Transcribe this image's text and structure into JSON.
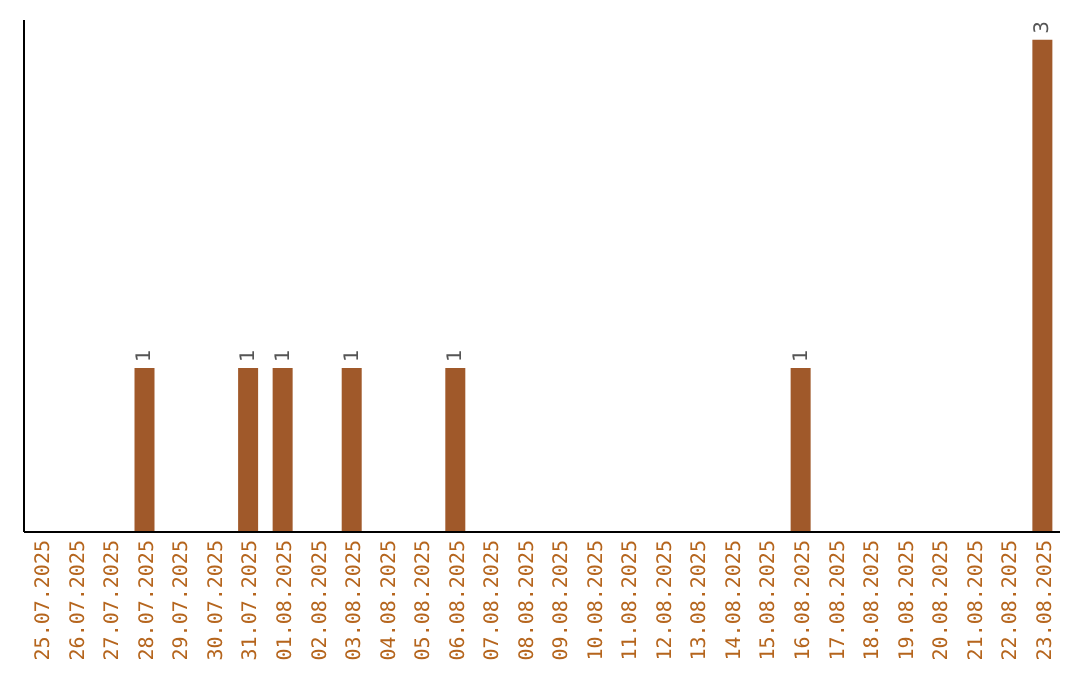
{
  "chart_data": {
    "type": "bar",
    "relative": false,
    "categories": [
      "25.07.2025",
      "26.07.2025",
      "27.07.2025",
      "28.07.2025",
      "29.07.2025",
      "30.07.2025",
      "31.07.2025",
      "01.08.2025",
      "02.08.2025",
      "03.08.2025",
      "04.08.2025",
      "05.08.2025",
      "06.08.2025",
      "07.08.2025",
      "08.08.2025",
      "09.08.2025",
      "10.08.2025",
      "11.08.2025",
      "12.08.2025",
      "13.08.2025",
      "14.08.2025",
      "15.08.2025",
      "16.08.2025",
      "17.08.2025",
      "18.08.2025",
      "19.08.2025",
      "20.08.2025",
      "21.08.2025",
      "22.08.2025",
      "23.08.2025"
    ],
    "values": [
      0,
      0,
      0,
      1,
      0,
      0,
      1,
      1,
      0,
      1,
      0,
      0,
      1,
      0,
      0,
      0,
      0,
      0,
      0,
      0,
      0,
      0,
      1,
      0,
      0,
      0,
      0,
      0,
      0,
      3
    ],
    "value_labels": [
      null,
      null,
      null,
      "1",
      null,
      null,
      "1",
      "1",
      null,
      "1",
      null,
      null,
      "1",
      null,
      null,
      null,
      null,
      null,
      null,
      null,
      null,
      null,
      "1",
      null,
      null,
      null,
      null,
      null,
      null,
      "3"
    ],
    "color": "#a0592a"
  }
}
